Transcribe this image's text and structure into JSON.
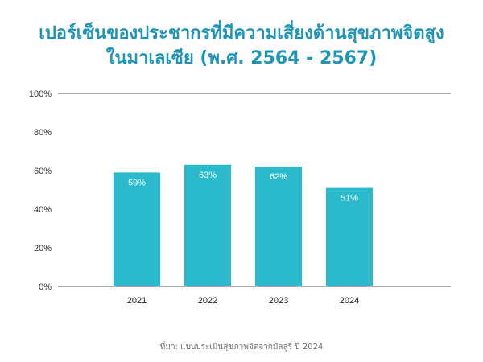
{
  "title_lines": [
    "เปอร์เซ็นของประชากรที่มีความเสี่ยงด้านสุขภาพจิตสูง",
    "ในมาเลเซีย (พ.ศ. 2564 - 2567)"
  ],
  "source": "ที่มา: แบบประเมินสุขภาพจิตจากมัลลูรี่ ปี 2024",
  "colors": {
    "bar": "#2bbacb",
    "title": "#1f95b5",
    "grid": "#555555"
  },
  "chart_data": {
    "type": "bar",
    "categories": [
      "2021",
      "2022",
      "2023",
      "2024"
    ],
    "values": [
      59,
      63,
      62,
      51
    ],
    "value_labels": [
      "59%",
      "63%",
      "62%",
      "51%"
    ],
    "ylim": [
      0,
      100
    ],
    "yticks": [
      0,
      20,
      40,
      60,
      80,
      100
    ],
    "ytick_labels": [
      "0%",
      "20%",
      "40%",
      "60%",
      "80%",
      "100%"
    ],
    "grid": "y-major-top-and-bottom"
  }
}
